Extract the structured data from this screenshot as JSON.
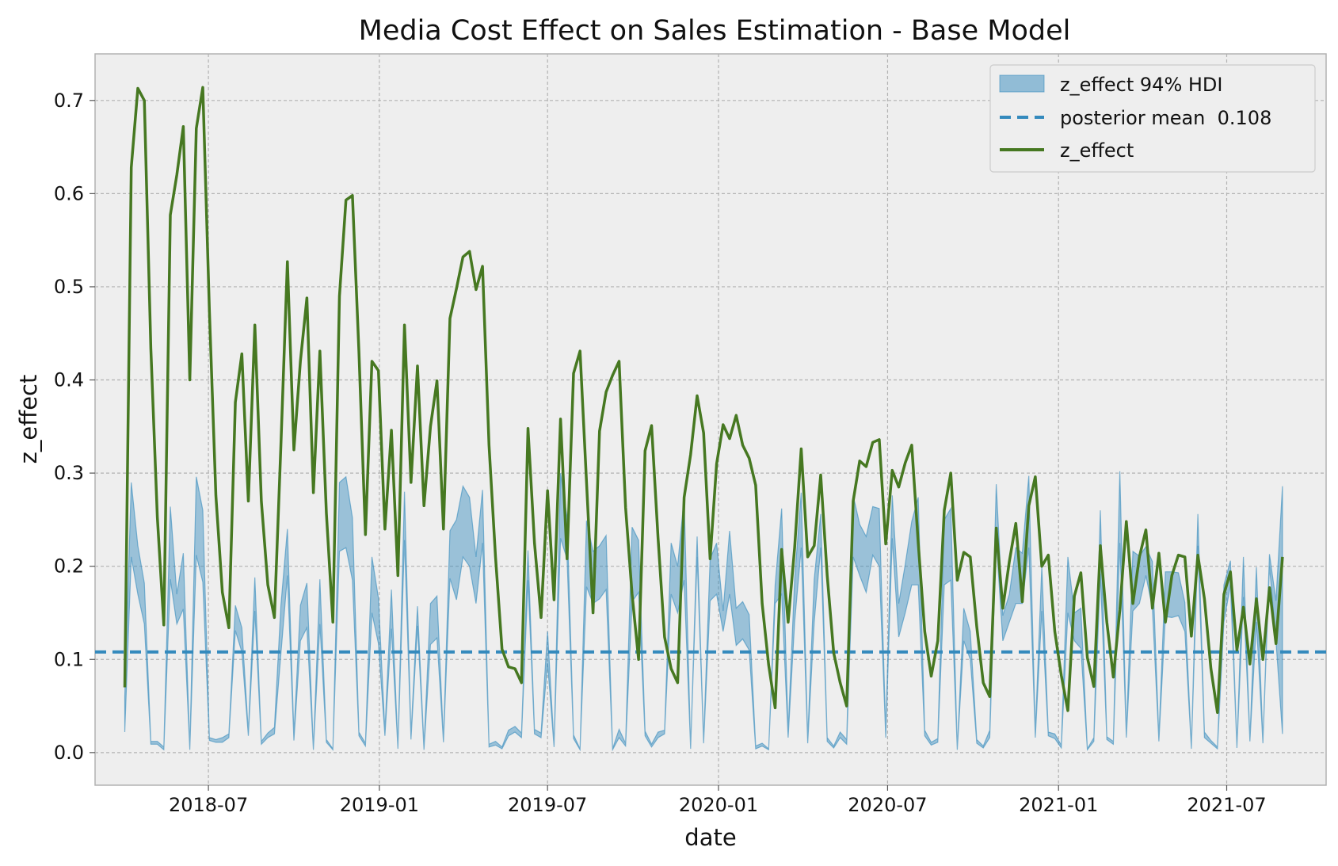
{
  "chart_data": {
    "type": "line",
    "title": "Media Cost Effect on Sales Estimation - Base Model",
    "xlabel": "date",
    "ylabel": "z_effect",
    "xlim": [
      "2018-03-01",
      "2021-10-16"
    ],
    "ylim": [
      -0.035,
      0.75
    ],
    "x_ticks": [
      "2018-07-01",
      "2019-01-01",
      "2019-07-01",
      "2020-01-01",
      "2020-07-01",
      "2021-01-01",
      "2021-07-01"
    ],
    "x_tick_labels": [
      "2018-07",
      "2019-01",
      "2019-07",
      "2020-01",
      "2020-07",
      "2021-01",
      "2021-07"
    ],
    "y_ticks": [
      0.0,
      0.1,
      0.2,
      0.3,
      0.4,
      0.5,
      0.6,
      0.7
    ],
    "y_tick_labels": [
      "0.0",
      "0.1",
      "0.2",
      "0.3",
      "0.4",
      "0.5",
      "0.6",
      "0.7"
    ],
    "grid": true,
    "legend_position": "top-right",
    "colors": {
      "background": "#eeeeee",
      "grid": "#b2b2b2",
      "hdi_fill": "#348abd",
      "mean_line": "#348abd",
      "effect_line": "#467821"
    },
    "series": [
      {
        "name": "z_effect 94% HDI",
        "type": "band",
        "x": [
          "2018-04-02",
          "2018-04-09",
          "2018-04-16",
          "2018-04-23",
          "2018-04-30",
          "2018-05-07",
          "2018-05-14",
          "2018-05-21",
          "2018-05-28",
          "2018-06-04",
          "2018-06-11",
          "2018-06-18",
          "2018-06-25",
          "2018-07-02",
          "2018-07-09",
          "2018-07-16",
          "2018-07-23",
          "2018-07-30",
          "2018-08-06",
          "2018-08-13",
          "2018-08-20",
          "2018-08-27",
          "2018-09-03",
          "2018-09-10",
          "2018-09-17",
          "2018-09-24",
          "2018-10-01",
          "2018-10-08",
          "2018-10-15",
          "2018-10-22",
          "2018-10-29",
          "2018-11-05",
          "2018-11-12",
          "2018-11-19",
          "2018-11-26",
          "2018-12-03",
          "2018-12-10",
          "2018-12-17",
          "2018-12-24",
          "2018-12-31",
          "2019-01-07",
          "2019-01-14",
          "2019-01-21",
          "2019-01-28",
          "2019-02-04",
          "2019-02-11",
          "2019-02-18",
          "2019-02-25",
          "2019-03-04",
          "2019-03-11",
          "2019-03-18",
          "2019-03-25",
          "2019-04-01",
          "2019-04-08",
          "2019-04-15",
          "2019-04-22",
          "2019-04-29",
          "2019-05-06",
          "2019-05-13",
          "2019-05-20",
          "2019-05-27",
          "2019-06-03",
          "2019-06-10",
          "2019-06-17",
          "2019-06-24",
          "2019-07-01",
          "2019-07-08",
          "2019-07-15",
          "2019-07-22",
          "2019-07-29",
          "2019-08-05",
          "2019-08-12",
          "2019-08-19",
          "2019-08-26",
          "2019-09-02",
          "2019-09-09",
          "2019-09-16",
          "2019-09-23",
          "2019-09-30",
          "2019-10-07",
          "2019-10-14",
          "2019-10-21",
          "2019-10-28",
          "2019-11-04",
          "2019-11-11",
          "2019-11-18",
          "2019-11-25",
          "2019-12-02",
          "2019-12-09",
          "2019-12-16",
          "2019-12-23",
          "2019-12-30",
          "2020-01-06",
          "2020-01-13",
          "2020-01-20",
          "2020-01-27",
          "2020-02-03",
          "2020-02-10",
          "2020-02-17",
          "2020-02-24",
          "2020-03-02",
          "2020-03-09",
          "2020-03-16",
          "2020-03-23",
          "2020-03-30",
          "2020-04-06",
          "2020-04-13",
          "2020-04-20",
          "2020-04-27",
          "2020-05-04",
          "2020-05-11",
          "2020-05-18",
          "2020-05-25",
          "2020-06-01",
          "2020-06-08",
          "2020-06-15",
          "2020-06-22",
          "2020-06-29",
          "2020-07-06",
          "2020-07-13",
          "2020-07-20",
          "2020-07-27",
          "2020-08-03",
          "2020-08-10",
          "2020-08-17",
          "2020-08-24",
          "2020-08-31",
          "2020-09-07",
          "2020-09-14",
          "2020-09-21",
          "2020-09-28",
          "2020-10-05",
          "2020-10-12",
          "2020-10-19",
          "2020-10-26",
          "2020-11-02",
          "2020-11-09",
          "2020-11-16",
          "2020-11-23",
          "2020-11-30",
          "2020-12-07",
          "2020-12-14",
          "2020-12-21",
          "2020-12-28",
          "2021-01-04",
          "2021-01-11",
          "2021-01-18",
          "2021-01-25",
          "2021-02-01",
          "2021-02-08",
          "2021-02-15",
          "2021-02-22",
          "2021-03-01",
          "2021-03-08",
          "2021-03-15",
          "2021-03-22",
          "2021-03-29",
          "2021-04-05",
          "2021-04-12",
          "2021-04-19",
          "2021-04-26",
          "2021-05-03",
          "2021-05-10",
          "2021-05-17",
          "2021-05-24",
          "2021-05-31",
          "2021-06-07",
          "2021-06-14",
          "2021-06-21",
          "2021-06-28",
          "2021-07-05",
          "2021-07-12",
          "2021-07-19",
          "2021-07-26",
          "2021-08-02",
          "2021-08-09",
          "2021-08-16",
          "2021-08-23",
          "2021-08-30"
        ],
        "lower": [
          0.022,
          0.21,
          0.17,
          0.138,
          0.009,
          0.009,
          0.003,
          0.186,
          0.138,
          0.154,
          0.003,
          0.212,
          0.183,
          0.013,
          0.011,
          0.011,
          0.016,
          0.131,
          0.108,
          0.018,
          0.152,
          0.009,
          0.016,
          0.02,
          0.106,
          0.19,
          0.013,
          0.12,
          0.134,
          0.003,
          0.138,
          0.011,
          0.003,
          0.216,
          0.22,
          0.185,
          0.018,
          0.007,
          0.15,
          0.117,
          0.018,
          0.133,
          0.004,
          0.228,
          0.014,
          0.136,
          0.003,
          0.116,
          0.123,
          0.011,
          0.187,
          0.164,
          0.21,
          0.2,
          0.16,
          0.225,
          0.006,
          0.008,
          0.004,
          0.018,
          0.022,
          0.016,
          0.185,
          0.02,
          0.016,
          0.096,
          0.006,
          0.23,
          0.208,
          0.015,
          0.003,
          0.178,
          0.16,
          0.165,
          0.175,
          0.003,
          0.016,
          0.007,
          0.162,
          0.172,
          0.018,
          0.006,
          0.016,
          0.02,
          0.17,
          0.15,
          0.185,
          0.004,
          0.21,
          0.01,
          0.163,
          0.17,
          0.13,
          0.17,
          0.115,
          0.122,
          0.11,
          0.004,
          0.007,
          0.003,
          0.16,
          0.17,
          0.016,
          0.14,
          0.22,
          0.01,
          0.14,
          0.22,
          0.012,
          0.005,
          0.016,
          0.009,
          0.21,
          0.19,
          0.172,
          0.212,
          0.2,
          0.016,
          0.23,
          0.124,
          0.15,
          0.18,
          0.18,
          0.018,
          0.008,
          0.011,
          0.18,
          0.185,
          0.003,
          0.12,
          0.1,
          0.01,
          0.005,
          0.016,
          0.228,
          0.12,
          0.14,
          0.16,
          0.16,
          0.22,
          0.016,
          0.152,
          0.018,
          0.015,
          0.005,
          0.15,
          0.12,
          0.112,
          0.003,
          0.012,
          0.192,
          0.014,
          0.009,
          0.225,
          0.016,
          0.152,
          0.16,
          0.19,
          0.155,
          0.012,
          0.146,
          0.145,
          0.147,
          0.13,
          0.004,
          0.222,
          0.016,
          0.01,
          0.004,
          0.14,
          0.18,
          0.005,
          0.167,
          0.012,
          0.14,
          0.01,
          0.2,
          0.12,
          0.02
        ],
        "upper": [
          0.06,
          0.29,
          0.222,
          0.182,
          0.012,
          0.012,
          0.006,
          0.264,
          0.17,
          0.214,
          0.005,
          0.296,
          0.26,
          0.016,
          0.014,
          0.016,
          0.02,
          0.158,
          0.134,
          0.022,
          0.188,
          0.012,
          0.021,
          0.027,
          0.158,
          0.24,
          0.019,
          0.158,
          0.182,
          0.004,
          0.186,
          0.014,
          0.004,
          0.29,
          0.296,
          0.252,
          0.022,
          0.01,
          0.21,
          0.166,
          0.023,
          0.175,
          0.006,
          0.28,
          0.019,
          0.157,
          0.007,
          0.16,
          0.168,
          0.014,
          0.238,
          0.25,
          0.286,
          0.274,
          0.21,
          0.282,
          0.009,
          0.012,
          0.006,
          0.024,
          0.028,
          0.021,
          0.217,
          0.025,
          0.021,
          0.13,
          0.008,
          0.3,
          0.253,
          0.019,
          0.004,
          0.249,
          0.216,
          0.222,
          0.233,
          0.004,
          0.025,
          0.01,
          0.242,
          0.228,
          0.023,
          0.009,
          0.022,
          0.024,
          0.225,
          0.2,
          0.274,
          0.005,
          0.232,
          0.013,
          0.208,
          0.225,
          0.152,
          0.238,
          0.155,
          0.162,
          0.148,
          0.007,
          0.01,
          0.004,
          0.18,
          0.262,
          0.023,
          0.186,
          0.279,
          0.015,
          0.186,
          0.256,
          0.016,
          0.007,
          0.022,
          0.014,
          0.276,
          0.245,
          0.232,
          0.264,
          0.262,
          0.022,
          0.276,
          0.16,
          0.202,
          0.248,
          0.274,
          0.024,
          0.011,
          0.015,
          0.25,
          0.262,
          0.004,
          0.155,
          0.13,
          0.014,
          0.007,
          0.024,
          0.288,
          0.147,
          0.17,
          0.22,
          0.214,
          0.297,
          0.022,
          0.2,
          0.022,
          0.02,
          0.008,
          0.21,
          0.15,
          0.155,
          0.004,
          0.016,
          0.26,
          0.017,
          0.012,
          0.302,
          0.02,
          0.216,
          0.211,
          0.221,
          0.205,
          0.016,
          0.194,
          0.194,
          0.193,
          0.161,
          0.006,
          0.256,
          0.022,
          0.013,
          0.006,
          0.18,
          0.206,
          0.007,
          0.21,
          0.014,
          0.199,
          0.013,
          0.213,
          0.163,
          0.286
        ]
      },
      {
        "name": "posterior mean  0.108",
        "type": "hline",
        "y": 0.108
      },
      {
        "name": "z_effect",
        "type": "line",
        "values": [
          0.07,
          0.628,
          0.713,
          0.7,
          0.434,
          0.253,
          0.137,
          0.577,
          0.62,
          0.672,
          0.4,
          0.67,
          0.714,
          0.475,
          0.276,
          0.172,
          0.134,
          0.376,
          0.428,
          0.27,
          0.459,
          0.27,
          0.18,
          0.145,
          0.33,
          0.527,
          0.325,
          0.42,
          0.488,
          0.279,
          0.431,
          0.257,
          0.14,
          0.49,
          0.593,
          0.598,
          0.43,
          0.234,
          0.42,
          0.41,
          0.24,
          0.346,
          0.19,
          0.459,
          0.29,
          0.415,
          0.265,
          0.35,
          0.399,
          0.24,
          0.466,
          0.498,
          0.532,
          0.538,
          0.497,
          0.522,
          0.33,
          0.21,
          0.111,
          0.092,
          0.09,
          0.075,
          0.348,
          0.225,
          0.145,
          0.281,
          0.164,
          0.358,
          0.208,
          0.407,
          0.431,
          0.29,
          0.15,
          0.345,
          0.387,
          0.405,
          0.42,
          0.263,
          0.17,
          0.1,
          0.324,
          0.351,
          0.23,
          0.124,
          0.09,
          0.075,
          0.274,
          0.32,
          0.383,
          0.343,
          0.208,
          0.31,
          0.352,
          0.337,
          0.362,
          0.33,
          0.316,
          0.287,
          0.16,
          0.094,
          0.048,
          0.218,
          0.14,
          0.22,
          0.326,
          0.21,
          0.222,
          0.298,
          0.19,
          0.107,
          0.075,
          0.05,
          0.27,
          0.313,
          0.307,
          0.333,
          0.336,
          0.224,
          0.303,
          0.285,
          0.311,
          0.33,
          0.225,
          0.13,
          0.082,
          0.12,
          0.26,
          0.3,
          0.185,
          0.215,
          0.21,
          0.135,
          0.075,
          0.06,
          0.241,
          0.155,
          0.205,
          0.246,
          0.162,
          0.265,
          0.296,
          0.2,
          0.212,
          0.13,
          0.083,
          0.045,
          0.168,
          0.193,
          0.102,
          0.071,
          0.222,
          0.14,
          0.081,
          0.153,
          0.248,
          0.16,
          0.21,
          0.239,
          0.155,
          0.214,
          0.14,
          0.19,
          0.212,
          0.21,
          0.125,
          0.212,
          0.165,
          0.09,
          0.043,
          0.17,
          0.194,
          0.11,
          0.156,
          0.095,
          0.165,
          0.1,
          0.177,
          0.117,
          0.21
        ]
      }
    ]
  }
}
